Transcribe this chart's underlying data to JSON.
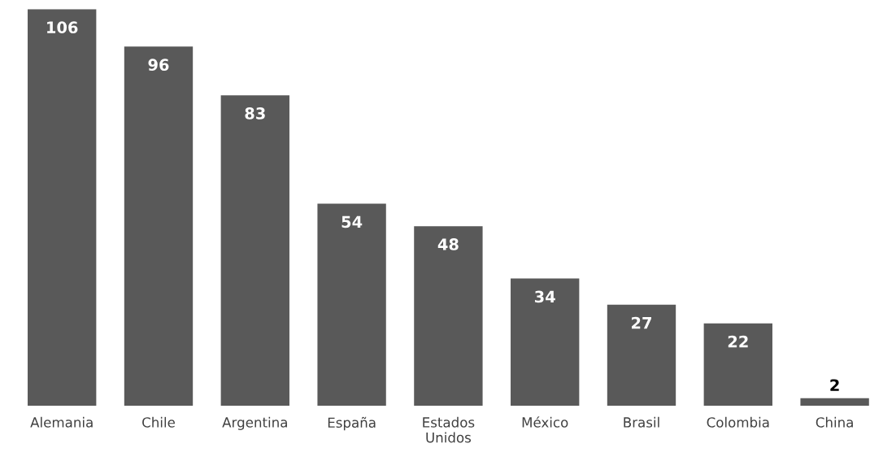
{
  "chart_data": {
    "type": "bar",
    "categories": [
      "Alemania",
      "Chile",
      "Argentina",
      "España",
      "Estados\nUnidos",
      "México",
      "Brasil",
      "Colombia",
      "China"
    ],
    "values": [
      106,
      96,
      83,
      54,
      48,
      34,
      27,
      22,
      2
    ],
    "color": "#595959",
    "data_labels": true,
    "grid": false,
    "legend": false
  }
}
